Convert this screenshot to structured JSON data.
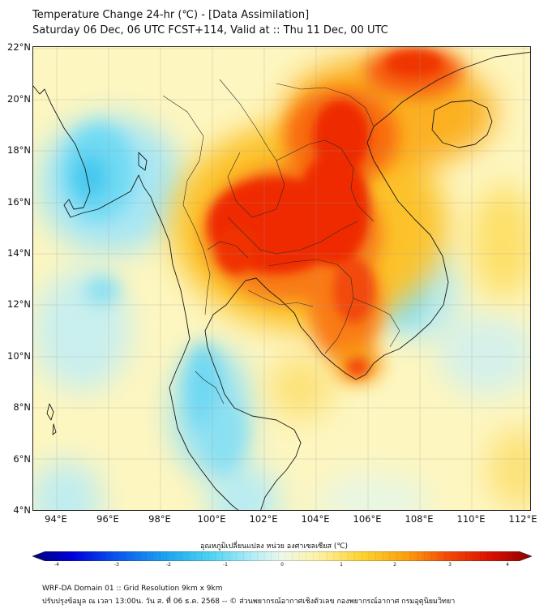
{
  "header": {
    "line1": "Temperature Change 24-hr (℃) - [Data Assimilation]",
    "line2": "Saturday 06 Dec, 06 UTC FCST+114, Valid at :: Thu 11 Dec, 00 UTC"
  },
  "map": {
    "lat_ticks": [
      "22°N",
      "20°N",
      "18°N",
      "16°N",
      "14°N",
      "12°N",
      "10°N",
      "8°N",
      "6°N",
      "4°N"
    ],
    "lon_ticks": [
      "94°E",
      "96°E",
      "98°E",
      "100°E",
      "102°E",
      "104°E",
      "106°E",
      "108°E",
      "110°E",
      "112°E"
    ],
    "extent": {
      "lon": [
        93,
        112.3
      ],
      "lat": [
        4,
        22.2
      ]
    }
  },
  "legend": {
    "title": "อุณหภูมิเปลี่ยนแปลง หน่วย องศาเซลเซียส (℃)",
    "ticks": [
      "-4",
      "-3",
      "-2",
      "-1",
      "0",
      "1",
      "2",
      "3",
      "4"
    ],
    "range": [
      -4,
      4
    ],
    "colors": [
      "#00007a",
      "#0000d8",
      "#0a58ee",
      "#1ea6f0",
      "#50d4f2",
      "#b2edf6",
      "#eef8ea",
      "#fdf3a6",
      "#fdd330",
      "#fb9f10",
      "#f44a08",
      "#d81000",
      "#8a0000"
    ]
  },
  "footer": {
    "line1": "WRF-DA Domain 01 :: Grid Resolution 9km x 9km",
    "line2": "ปรับปรุงข้อมูล ณ เวลา 13:00น. วัน ส. ที่ 06 ธ.ค. 2568 -- © ส่วนพยากรณ์อากาศเชิงตัวเลข กองพยากรณ์อากาศ กรมอุตุนิยมวิทยา"
  }
}
